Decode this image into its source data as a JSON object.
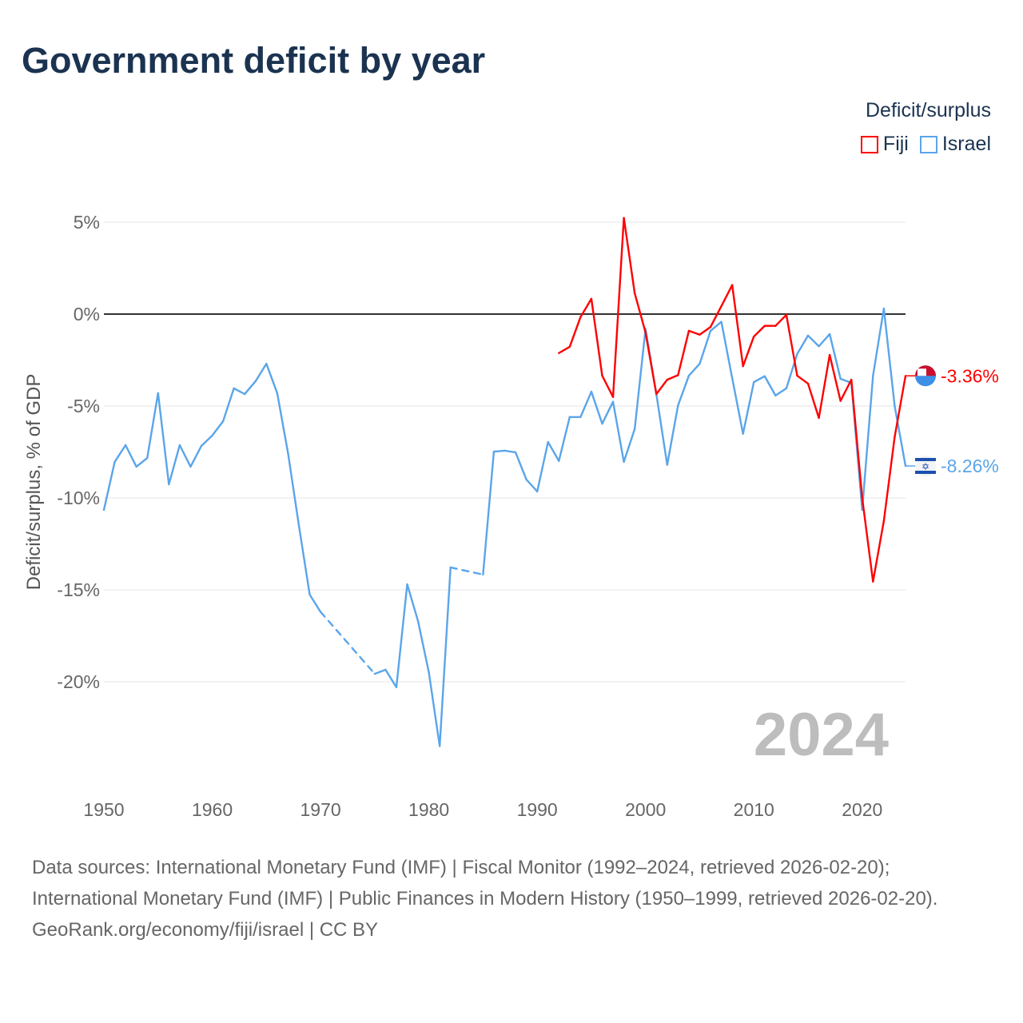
{
  "title": "Government deficit by year",
  "legend": {
    "title": "Deficit/surplus",
    "items": [
      {
        "name": "Fiji",
        "color": "#ff0000"
      },
      {
        "name": "Israel",
        "color": "#5aa5ea"
      }
    ]
  },
  "year_watermark": "2024",
  "footer": {
    "sources": "Data sources: International Monetary Fund (IMF) | Fiscal Monitor (1992–2024, retrieved 2026-02-20); International Monetary Fund (IMF) | Public Finances in Modern History (1950–1999, retrieved 2026-02-20).",
    "credit": "GeoRank.org/economy/fiji/israel | CC BY"
  },
  "chart_data": {
    "type": "line",
    "title": "Government deficit by year",
    "xlabel": "",
    "ylabel": "Deficit/surplus, % of GDP",
    "xlim": [
      1950,
      2024
    ],
    "ylim": [
      -25,
      5
    ],
    "xticks": [
      1950,
      1960,
      1970,
      1980,
      1990,
      2000,
      2010,
      2020
    ],
    "yticks": [
      5,
      0,
      -5,
      -10,
      -15,
      -20
    ],
    "ytick_labels": [
      "5%",
      "0%",
      "-5%",
      "-10%",
      "-15%",
      "-20%"
    ],
    "grid": true,
    "legend_position": "top-right",
    "end_labels": {
      "Fiji": "-3.36%",
      "Israel": "-8.26%"
    },
    "series": [
      {
        "name": "Israel",
        "color": "#5aa5ea",
        "start_year": 1950,
        "values": [
          -10.65,
          -8.04,
          -7.13,
          -8.3,
          -7.83,
          -4.3,
          -9.26,
          -7.13,
          -8.3,
          -7.17,
          -6.61,
          -5.83,
          -4.04,
          -4.35,
          -3.65,
          -2.7,
          -4.3,
          -7.57,
          -11.5,
          -15.26,
          -16.2,
          null,
          null,
          null,
          null,
          -19.57,
          -19.35,
          -20.3,
          -14.7,
          -16.7,
          -19.5,
          -23.5,
          -13.78,
          null,
          null,
          -14.17,
          -7.48,
          -7.43,
          -7.52,
          -9.0,
          -9.65,
          -6.96,
          -7.99,
          -5.6,
          -5.6,
          -4.22,
          -5.96,
          -4.77,
          -8.04,
          -6.25,
          -0.81,
          -4.35,
          -8.2,
          -4.97,
          -3.35,
          -2.7,
          -0.91,
          -0.42,
          -3.48,
          -6.51,
          -3.7,
          -3.38,
          -4.43,
          -4.04,
          -2.17,
          -1.17,
          -1.75,
          -1.09,
          -3.52,
          -3.74,
          -10.65,
          -3.35,
          0.3,
          -5.0,
          -8.26
        ]
      },
      {
        "name": "Fiji",
        "color": "#ff0000",
        "start_year": 1992,
        "values": [
          -2.12,
          -1.78,
          -0.16,
          0.83,
          -3.35,
          -4.51,
          5.23,
          1.14,
          -1.0,
          -4.35,
          -3.57,
          -3.32,
          -0.91,
          -1.12,
          -0.7,
          0.43,
          1.58,
          -2.83,
          -1.22,
          -0.64,
          -0.64,
          -0.04,
          -3.35,
          -3.78,
          -5.65,
          -2.22,
          -4.72,
          -3.57,
          -10.0,
          -14.55,
          -11.25,
          -6.68,
          -3.36
        ]
      }
    ]
  }
}
